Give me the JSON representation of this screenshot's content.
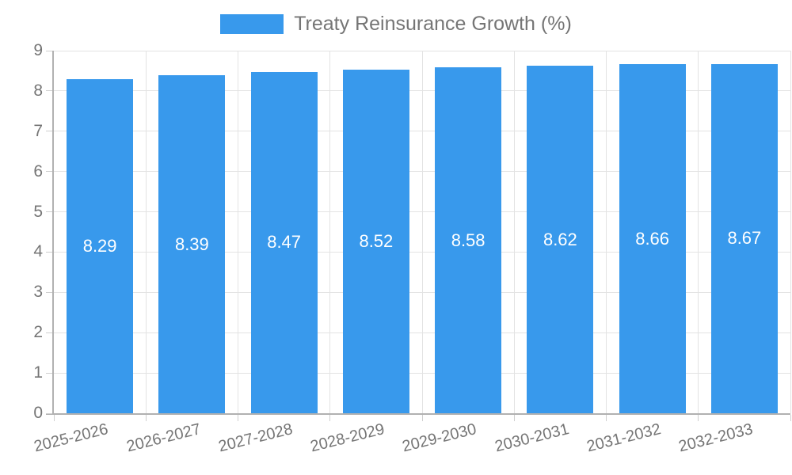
{
  "chart_data": {
    "type": "bar",
    "title": "Treaty Reinsurance Growth (%)",
    "categories": [
      "2025-2026",
      "2026-2027",
      "2027-2028",
      "2028-2029",
      "2029-2030",
      "2030-2031",
      "2031-2032",
      "2032-2033"
    ],
    "values": [
      8.29,
      8.39,
      8.47,
      8.52,
      8.58,
      8.62,
      8.66,
      8.67
    ],
    "value_labels": [
      "8.29",
      "8.39",
      "8.47",
      "8.52",
      "8.58",
      "8.62",
      "8.66",
      "8.67"
    ],
    "xlabel": "",
    "ylabel": "",
    "ylim": [
      0,
      9
    ],
    "y_ticks": [
      0,
      1,
      2,
      3,
      4,
      5,
      6,
      7,
      8,
      9
    ],
    "grid": true,
    "legend": {
      "position": "top",
      "label": "Treaty Reinsurance Growth (%)"
    },
    "colors": {
      "bar": "#3899ec",
      "bar_label": "#ffffff",
      "axis_text": "#757575",
      "grid_line": "#e3e3e3",
      "tick_line": "#cfcfcf",
      "axis_line": "#b1b1b1",
      "background": "#ffffff"
    }
  }
}
